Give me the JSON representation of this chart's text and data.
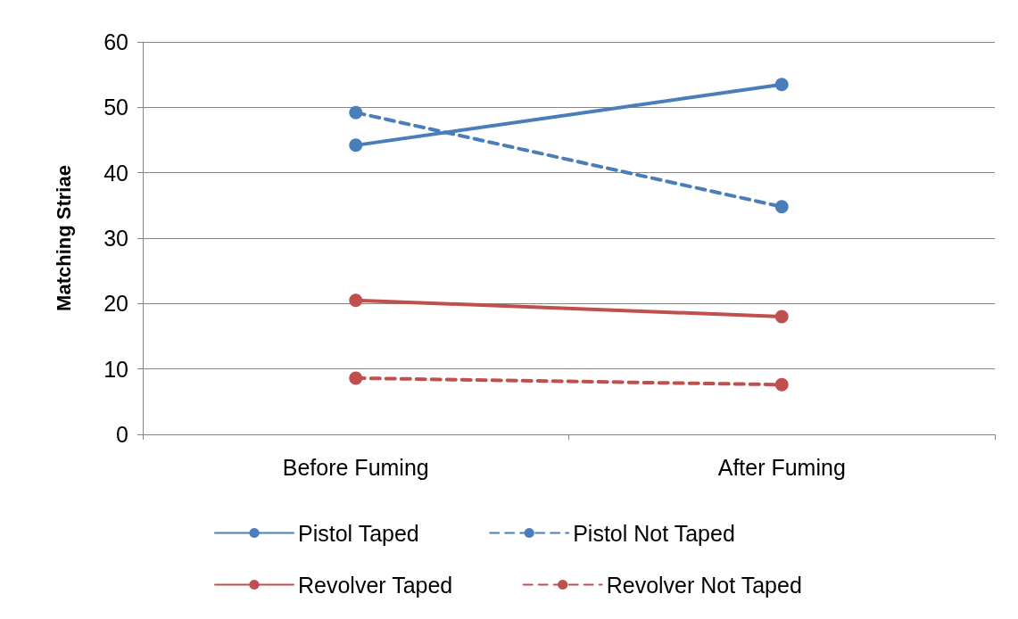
{
  "chart_data": {
    "type": "line",
    "ylabel": "Matching Striae",
    "categories": [
      "Before Fuming",
      "After Fuming"
    ],
    "series": [
      {
        "name": "Pistol Taped",
        "color": "#4a7ebb",
        "line_style": "solid",
        "values": [
          44.2,
          53.5
        ]
      },
      {
        "name": "Pistol Not Taped",
        "color": "#4a7ebb",
        "line_style": "dashed",
        "values": [
          49.2,
          34.8
        ]
      },
      {
        "name": "Revolver Taped",
        "color": "#c0504d",
        "line_style": "solid",
        "values": [
          20.5,
          18.0
        ]
      },
      {
        "name": "Revolver Not Taped",
        "color": "#c0504d",
        "line_style": "dashed",
        "values": [
          8.6,
          7.6
        ]
      }
    ],
    "ylim": [
      0,
      60
    ],
    "yticks": [
      0,
      10,
      20,
      30,
      40,
      50,
      60
    ],
    "grid": "y",
    "legend": "bottom",
    "marker": "circle"
  }
}
